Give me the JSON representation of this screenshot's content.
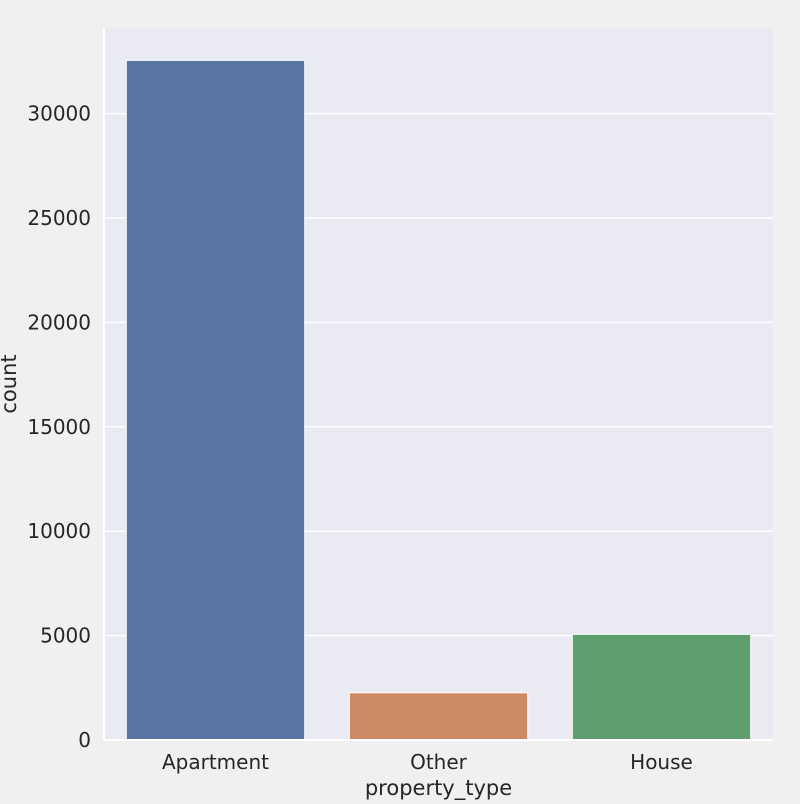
{
  "chart_data": {
    "type": "bar",
    "title": "",
    "xlabel": "property_type",
    "ylabel": "count",
    "categories": [
      "Apartment",
      "Other",
      "House"
    ],
    "values": [
      32550,
      2260,
      5060
    ],
    "colors": [
      "#5875a4",
      "#cc8963",
      "#5f9e6e"
    ],
    "ylim": [
      0,
      34100
    ],
    "yticks": [
      0,
      5000,
      10000,
      15000,
      20000,
      25000,
      30000
    ],
    "ytick_labels": [
      "0",
      "5000",
      "10000",
      "15000",
      "20000",
      "25000",
      "30000"
    ],
    "grid": true,
    "legend": "none",
    "plot_background": "#eaeaf2",
    "page_background": "#f0f0f0"
  }
}
